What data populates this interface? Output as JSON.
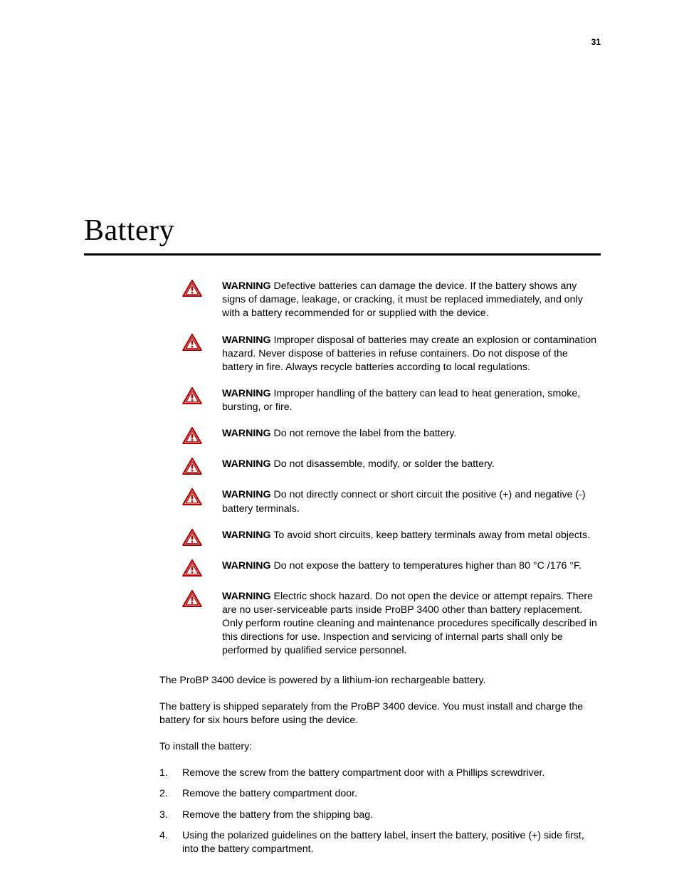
{
  "page_number": "31",
  "title": "Battery",
  "warning_lead": "WARNING",
  "icon": {
    "stroke": "#b40000",
    "fill": "#ffffff",
    "exclaim": "#b40000"
  },
  "warnings": [
    {
      "text": "Defective batteries can damage the device. If the battery shows any signs of damage, leakage, or cracking, it must be replaced immediately, and only with a battery recommended for or supplied with the device."
    },
    {
      "text": "Improper disposal of batteries may create an explosion or contamination hazard. Never dispose of batteries in refuse containers. Do not dispose of the battery in fire. Always recycle batteries according to local regulations."
    },
    {
      "text": "Improper handling of the battery can lead to heat generation, smoke, bursting, or fire."
    },
    {
      "text": "Do not remove the label from the battery."
    },
    {
      "text": "Do not disassemble, modify, or solder the battery."
    },
    {
      "text": "Do not directly connect or short circuit the positive (+) and negative (-) battery terminals."
    },
    {
      "text": "To avoid short circuits, keep battery terminals away from metal objects."
    },
    {
      "text": "Do not expose the battery to temperatures higher than 80 °C /176 °F."
    },
    {
      "text": "Electric shock hazard. Do not open the device or attempt repairs. There are no user-serviceable parts inside ProBP 3400 other than battery replacement. Only perform routine cleaning and maintenance procedures specifically described in this directions for use. Inspection and servicing of internal parts shall only be performed by qualified service personnel."
    }
  ],
  "body": [
    "The ProBP 3400 device is powered by a lithium-ion rechargeable battery.",
    "The battery is shipped separately from the ProBP 3400 device. You must install and charge the battery for six hours before using the device.",
    "To install the battery:"
  ],
  "steps": [
    "Remove the screw from the battery compartment door with a Phillips screwdriver.",
    "Remove the battery compartment door.",
    "Remove the battery from the shipping bag.",
    "Using the polarized guidelines on the battery label, insert the battery, positive (+) side first, into the battery compartment."
  ]
}
